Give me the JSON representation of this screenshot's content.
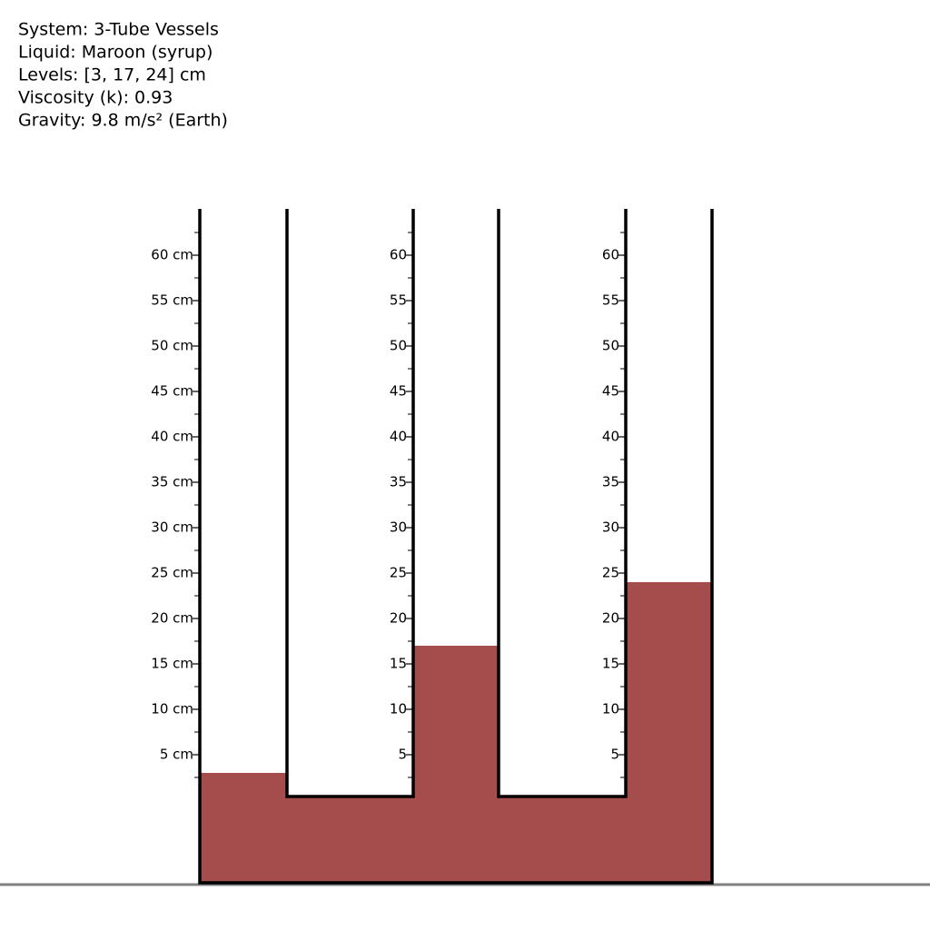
{
  "info": [
    "System: 3-Tube Vessels",
    "Liquid: Maroon (syrup)",
    "Levels: [3, 17, 24] cm",
    "Viscosity (k): 0.93",
    "Gravity: 9.8 m/s² (Earth)"
  ],
  "liquid_color": "#a54c4c",
  "scale_range": [
    0,
    65
  ],
  "minor_ticks": [
    2.5,
    7.5,
    12.5,
    17.5,
    22.5,
    27.5,
    32.5,
    37.5,
    42.5,
    47.5,
    52.5,
    57.5,
    62.5
  ],
  "tubes": [
    {
      "level": 3,
      "ticks": [
        {
          "value": 60,
          "label": "60 cm"
        },
        {
          "value": 55,
          "label": "55 cm"
        },
        {
          "value": 50,
          "label": "50 cm"
        },
        {
          "value": 45,
          "label": "45 cm"
        },
        {
          "value": 40,
          "label": "40 cm"
        },
        {
          "value": 35,
          "label": "35 cm"
        },
        {
          "value": 30,
          "label": "30 cm"
        },
        {
          "value": 25,
          "label": "25 cm"
        },
        {
          "value": 20,
          "label": "20 cm"
        },
        {
          "value": 15,
          "label": "15 cm"
        },
        {
          "value": 10,
          "label": "10 cm"
        },
        {
          "value": 5,
          "label": "5 cm"
        }
      ]
    },
    {
      "level": 17,
      "ticks": [
        60,
        55,
        50,
        45,
        40,
        35,
        30,
        25,
        20,
        15,
        10,
        5
      ]
    },
    {
      "level": 24,
      "ticks": [
        60,
        55,
        50,
        45,
        40,
        35,
        30,
        25,
        20,
        15,
        10,
        5
      ]
    }
  ]
}
